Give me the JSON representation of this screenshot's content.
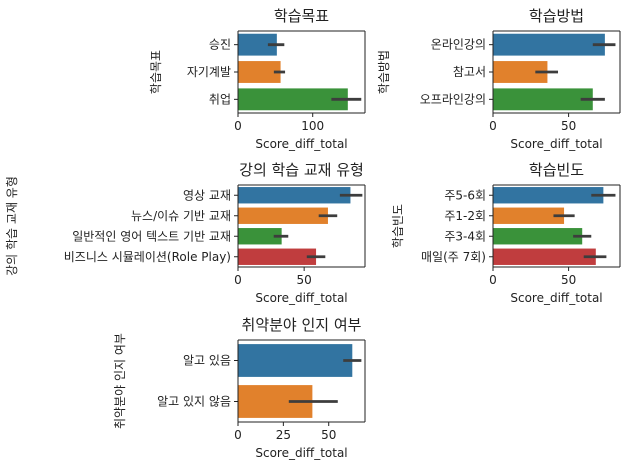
{
  "chart_data": [
    {
      "id": "goal",
      "type": "bar",
      "orientation": "horizontal",
      "title": "학습목표",
      "xlabel": "Score_diff_total",
      "ylabel": "학습목표",
      "categories": [
        "승진",
        "자기계발",
        "취업"
      ],
      "values": [
        52,
        57,
        147
      ],
      "ci": [
        [
          40,
          62
        ],
        [
          48,
          63
        ],
        [
          125,
          165
        ]
      ],
      "colors": [
        "#3274a1",
        "#e1812c",
        "#3a923a"
      ],
      "xlim": [
        0,
        170
      ],
      "xticks": [
        0,
        100
      ],
      "grid": false,
      "legend": "none"
    },
    {
      "id": "method",
      "type": "bar",
      "orientation": "horizontal",
      "title": "학습방법",
      "xlabel": "Score_diff_total",
      "ylabel": "학습방법",
      "categories": [
        "온라인강의",
        "참고서",
        "오프라인강의"
      ],
      "values": [
        74,
        36,
        66
      ],
      "ci": [
        [
          66,
          81
        ],
        [
          28,
          43
        ],
        [
          58,
          74
        ]
      ],
      "colors": [
        "#3274a1",
        "#e1812c",
        "#3a923a"
      ],
      "xlim": [
        0,
        84
      ],
      "xticks": [
        0,
        50
      ],
      "grid": false,
      "legend": "none"
    },
    {
      "id": "material",
      "type": "bar",
      "orientation": "horizontal",
      "title": "강의 학습 교재 유형",
      "xlabel": "Score_diff_total",
      "ylabel": "강의 학습 교재 유형",
      "categories": [
        "영상 교재",
        "뉴스/이슈 기반 교재",
        "일반적인 영어 텍스트 기반 교재",
        "비즈니스 시뮬레이션(Role Play)"
      ],
      "values": [
        85,
        68,
        33,
        59
      ],
      "ci": [
        [
          77,
          94
        ],
        [
          61,
          75
        ],
        [
          27,
          38
        ],
        [
          52,
          66
        ]
      ],
      "colors": [
        "#3274a1",
        "#e1812c",
        "#3a923a",
        "#c03d3e"
      ],
      "xlim": [
        0,
        96
      ],
      "xticks": [
        0,
        50
      ],
      "grid": false,
      "legend": "none"
    },
    {
      "id": "frequency",
      "type": "bar",
      "orientation": "horizontal",
      "title": "학습빈도",
      "xlabel": "Score_diff_total",
      "ylabel": "학습빈도",
      "categories": [
        "주5-6회",
        "주1-2회",
        "주3-4회",
        "매일(주 7회)"
      ],
      "values": [
        73,
        47,
        59,
        68
      ],
      "ci": [
        [
          65,
          81
        ],
        [
          40,
          54
        ],
        [
          53,
          65
        ],
        [
          60,
          75
        ]
      ],
      "colors": [
        "#3274a1",
        "#e1812c",
        "#3a923a",
        "#c03d3e"
      ],
      "xlim": [
        0,
        84
      ],
      "xticks": [
        0,
        50
      ],
      "grid": false,
      "legend": "none"
    },
    {
      "id": "weakness",
      "type": "bar",
      "orientation": "horizontal",
      "title": "취약분야 인지 여부",
      "xlabel": "Score_diff_total",
      "ylabel": "취약분야 인지 여부",
      "categories": [
        "알고 있음",
        "알고 있지 않음"
      ],
      "values": [
        63,
        41
      ],
      "ci": [
        [
          58,
          68
        ],
        [
          28,
          55
        ]
      ],
      "colors": [
        "#3274a1",
        "#e1812c"
      ],
      "xlim": [
        0,
        70
      ],
      "xticks": [
        0,
        25,
        50
      ],
      "grid": false,
      "legend": "none"
    }
  ]
}
